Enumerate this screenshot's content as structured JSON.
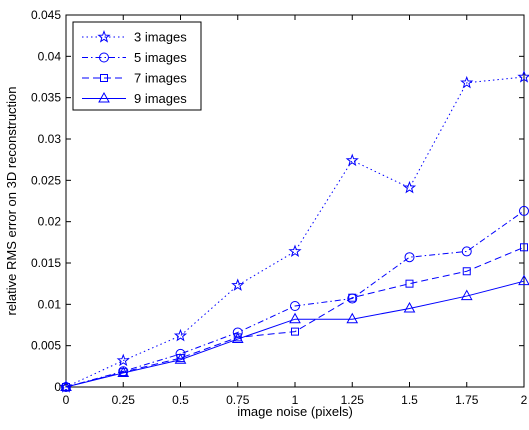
{
  "chart_data": {
    "type": "line",
    "xlabel": "image noise (pixels)",
    "ylabel": "relative RMS error on 3D reconstruction",
    "xlim": [
      0,
      2
    ],
    "ylim": [
      0,
      0.045
    ],
    "x_ticks": [
      "0",
      "0.25",
      "0.5",
      "0.75",
      "1",
      "1.25",
      "1.5",
      "1.75",
      "2"
    ],
    "y_ticks": [
      "0",
      "0.005",
      "0.01",
      "0.015",
      "0.02",
      "0.025",
      "0.03",
      "0.035",
      "0.04",
      "0.045"
    ],
    "grid": false,
    "legend_position": "top-left",
    "color": "#0000ff",
    "x": [
      0,
      0.25,
      0.5,
      0.75,
      1,
      1.25,
      1.5,
      1.75,
      2
    ],
    "series": [
      {
        "name": "3 images",
        "line_style": "dotted",
        "marker": "star",
        "values": [
          0,
          0.0032,
          0.0062,
          0.0123,
          0.0164,
          0.0274,
          0.0241,
          0.0368,
          0.0375
        ]
      },
      {
        "name": "5 images",
        "line_style": "dash-dot",
        "marker": "circle",
        "values": [
          0,
          0.0019,
          0.004,
          0.0066,
          0.0098,
          0.0107,
          0.0157,
          0.0164,
          0.0213
        ]
      },
      {
        "name": "7 images",
        "line_style": "dashed",
        "marker": "square",
        "values": [
          0,
          0.0018,
          0.0035,
          0.006,
          0.0067,
          0.0108,
          0.0125,
          0.014,
          0.0169
        ]
      },
      {
        "name": "9 images",
        "line_style": "solid",
        "marker": "triangle",
        "values": [
          0,
          0.0017,
          0.0033,
          0.0058,
          0.0082,
          0.0082,
          0.0095,
          0.011,
          0.0128
        ]
      }
    ]
  }
}
